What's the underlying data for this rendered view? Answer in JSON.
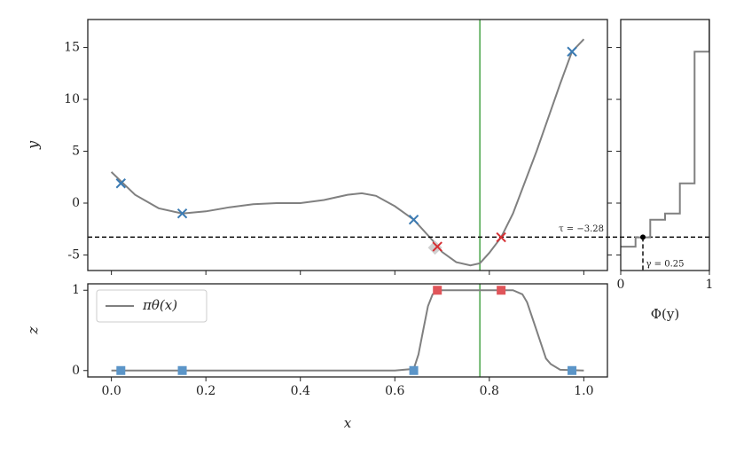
{
  "chart_data": [
    {
      "type": "line",
      "ylabel": "y",
      "xlim": [
        -0.05,
        1.05
      ],
      "ylim": [
        -6.5,
        17.7
      ],
      "xticks": [
        0,
        0.2,
        0.4,
        0.6,
        0.8,
        1
      ],
      "yticks": [
        -5,
        0,
        5,
        10,
        15
      ],
      "curve": {
        "color": "#808080",
        "x": [
          0,
          0.05,
          0.1,
          0.15,
          0.2,
          0.25,
          0.3,
          0.35,
          0.4,
          0.45,
          0.5,
          0.53,
          0.56,
          0.6,
          0.64,
          0.68,
          0.7,
          0.73,
          0.76,
          0.78,
          0.8,
          0.825,
          0.85,
          0.9,
          0.95,
          0.975,
          1.0
        ],
        "values": [
          3.0,
          0.8,
          -0.5,
          -1.0,
          -0.8,
          -0.4,
          -0.1,
          0.0,
          0.0,
          0.3,
          0.8,
          0.95,
          0.7,
          -0.3,
          -1.6,
          -3.6,
          -4.7,
          -5.7,
          -6.0,
          -5.8,
          -4.8,
          -3.3,
          -1.0,
          5.0,
          11.5,
          14.6,
          15.8
        ]
      },
      "markers": [
        {
          "marker": "diamond",
          "color": "#d0d0d0",
          "x": [
            0.685
          ],
          "values": [
            -4.3
          ]
        },
        {
          "marker": "x",
          "color": "#3b7bb3",
          "x": [
            0.02,
            0.15,
            0.64,
            0.975
          ],
          "values": [
            1.9,
            -1.0,
            -1.6,
            14.6
          ]
        },
        {
          "marker": "x",
          "color": "#d62f33",
          "x": [
            0.69,
            0.825
          ],
          "values": [
            -4.2,
            -3.3
          ]
        }
      ],
      "hline": {
        "value": -3.28,
        "label": "τ = −3.28",
        "color": "#000000"
      },
      "vline": {
        "value": 0.78,
        "color": "#55aa55"
      }
    },
    {
      "type": "line",
      "xlabel": "x",
      "ylabel": "z",
      "xlim": [
        -0.05,
        1.05
      ],
      "ylim": [
        -0.08,
        1.08
      ],
      "xticks": [
        {
          "value": 0,
          "label": "0.0"
        },
        0.2,
        0.4,
        0.6,
        0.8,
        {
          "value": 1,
          "label": "1.0"
        }
      ],
      "yticks": [
        0,
        1
      ],
      "legend": "upper left",
      "series": [
        {
          "name": "πθ(x)",
          "color": "#808080",
          "x": [
            0,
            0.3,
            0.6,
            0.64,
            0.65,
            0.66,
            0.67,
            0.68,
            0.7,
            0.75,
            0.85,
            0.87,
            0.88,
            0.9,
            0.92,
            0.93,
            0.95,
            1.0
          ],
          "values": [
            0,
            0,
            0,
            0.02,
            0.2,
            0.5,
            0.8,
            0.95,
            1.0,
            1.0,
            1.0,
            0.95,
            0.85,
            0.5,
            0.15,
            0.08,
            0.01,
            0
          ]
        }
      ],
      "markers": [
        {
          "marker": "square",
          "color": "#5b95c8",
          "x": [
            0.02,
            0.15,
            0.64,
            0.975
          ],
          "values": [
            0,
            0,
            0,
            0
          ]
        },
        {
          "marker": "square",
          "color": "#e0555a",
          "x": [
            0.69,
            0.825
          ],
          "values": [
            1,
            1
          ]
        }
      ],
      "vline": {
        "value": 0.78,
        "color": "#55aa55"
      }
    },
    {
      "type": "step",
      "xlabel": "Φ(y)",
      "xlim": [
        0,
        1
      ],
      "ylim": [
        -6.5,
        17.7
      ],
      "xticks": [
        0,
        1
      ],
      "yticks": [
        -5,
        0,
        5,
        10,
        15
      ],
      "series": [
        {
          "color": "#808080",
          "x": [
            0.167,
            0.333,
            0.5,
            0.667,
            0.833,
            1.0
          ],
          "values": [
            -4.2,
            -3.3,
            -1.6,
            -1.0,
            1.9,
            14.6
          ]
        }
      ],
      "point": {
        "x": 0.25,
        "y": -3.28,
        "label": "γ = 0.25"
      }
    }
  ]
}
